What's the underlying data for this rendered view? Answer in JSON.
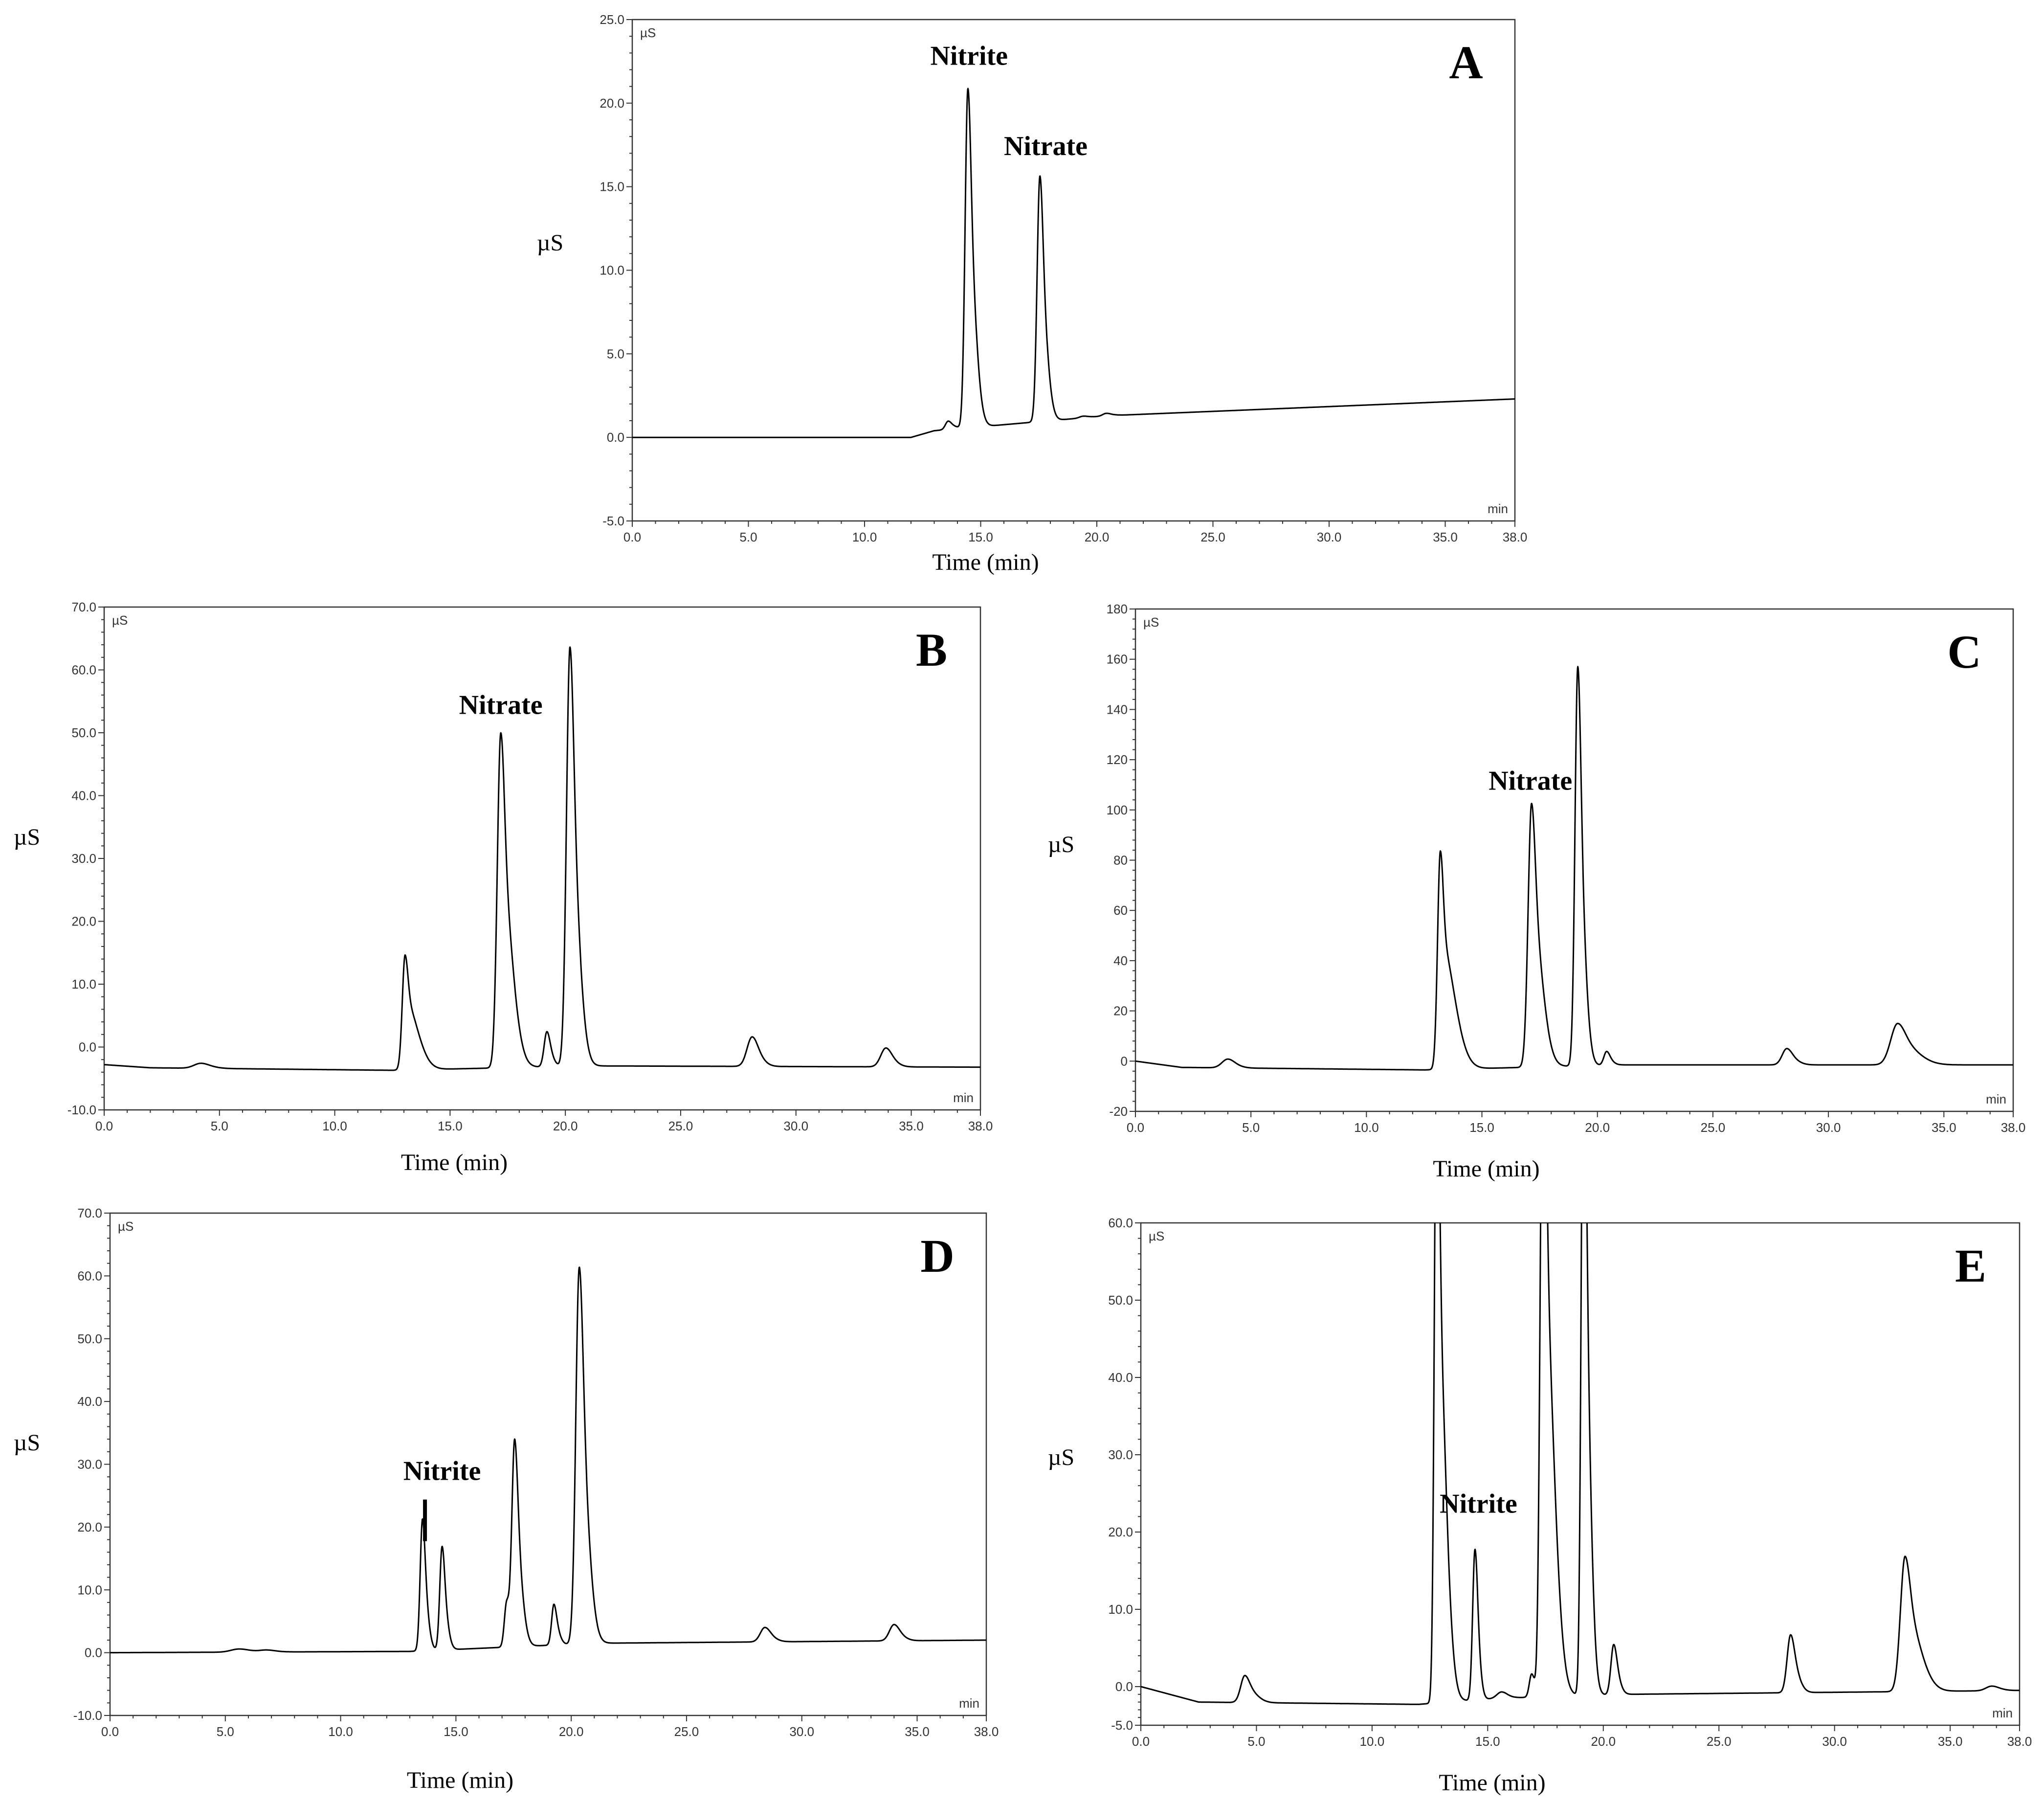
{
  "chart_data": [
    {
      "type": "line",
      "panel": "A",
      "unit_tag": "µS",
      "x_unit_tag": "min",
      "xlabel": "Time (min)",
      "ylabel": "µS",
      "xlim": [
        0,
        38
      ],
      "ylim": [
        -5,
        25
      ],
      "xticks": [
        "0.0",
        "5.0",
        "10.0",
        "15.0",
        "20.0",
        "25.0",
        "30.0",
        "35.0",
        "38.0"
      ],
      "yticks": [
        "-5.0",
        "0.0",
        "5.0",
        "10.0",
        "15.0",
        "20.0",
        "25.0"
      ],
      "baseline": [
        [
          0,
          0
        ],
        [
          12.0,
          0
        ],
        [
          13.0,
          0.4
        ],
        [
          20.5,
          1.3
        ],
        [
          38,
          2.3
        ]
      ],
      "peaks": [
        {
          "t": 13.6,
          "h": 0.5,
          "w": 0.12,
          "tail": 0.3
        },
        {
          "t": 14.45,
          "h": 20.3,
          "w": 0.12,
          "tail": 0.35
        },
        {
          "t": 17.55,
          "h": 14.7,
          "w": 0.12,
          "tail": 0.3
        },
        {
          "t": 19.4,
          "h": 0.1,
          "w": 0.15,
          "tail": 0.3
        },
        {
          "t": 20.4,
          "h": 0.15,
          "w": 0.15,
          "tail": 0.3
        }
      ],
      "annotations": [
        {
          "text": "Nitrite",
          "x": 14.5,
          "y": 22.3,
          "marker": false
        },
        {
          "text": "Nitrate",
          "x": 17.8,
          "y": 16.9,
          "marker": false
        }
      ]
    },
    {
      "type": "line",
      "panel": "B",
      "unit_tag": "µS",
      "x_unit_tag": "min",
      "xlabel": "Time (min)",
      "ylabel": "µS",
      "xlim": [
        0,
        38
      ],
      "ylim": [
        -10,
        70
      ],
      "xticks": [
        "0.0",
        "5.0",
        "10.0",
        "15.0",
        "20.0",
        "25.0",
        "30.0",
        "35.0",
        "38.0"
      ],
      "yticks": [
        "-10.0",
        "0.0",
        "10.0",
        "20.0",
        "30.0",
        "40.0",
        "50.0",
        "60.0",
        "70.0"
      ],
      "baseline": [
        [
          0,
          -2.8
        ],
        [
          2.0,
          -3.3
        ],
        [
          12.5,
          -3.7
        ],
        [
          21.0,
          -3.0
        ],
        [
          38,
          -3.2
        ]
      ],
      "peaks": [
        {
          "t": 4.2,
          "h": 0.8,
          "w": 0.3,
          "tail": 0.4
        },
        {
          "t": 13.05,
          "h": 18.3,
          "w": 0.12,
          "tail": 0.8
        },
        {
          "t": 17.2,
          "h": 53.3,
          "w": 0.15,
          "tail": 0.6
        },
        {
          "t": 19.2,
          "h": 5.6,
          "w": 0.12,
          "tail": 0.2
        },
        {
          "t": 20.2,
          "h": 66.7,
          "w": 0.15,
          "tail": 0.4
        },
        {
          "t": 28.1,
          "h": 4.7,
          "w": 0.22,
          "tail": 0.3
        },
        {
          "t": 33.9,
          "h": 3.0,
          "w": 0.22,
          "tail": 0.3
        }
      ],
      "annotations": [
        {
          "text": "Nitrate",
          "x": 17.2,
          "y": 53.0,
          "marker": false
        }
      ]
    },
    {
      "type": "line",
      "panel": "C",
      "unit_tag": "µS",
      "x_unit_tag": "min",
      "xlabel": "Time (min)",
      "ylabel": "µS",
      "xlim": [
        0,
        38
      ],
      "ylim": [
        -20,
        180
      ],
      "xticks": [
        "0.0",
        "5.0",
        "10.0",
        "15.0",
        "20.0",
        "25.0",
        "30.0",
        "35.0",
        "38.0"
      ],
      "yticks": [
        "-20",
        "0",
        "20",
        "40",
        "60",
        "80",
        "100",
        "120",
        "140",
        "160",
        "180"
      ],
      "baseline": [
        [
          0,
          0
        ],
        [
          2.0,
          -2.5
        ],
        [
          12.5,
          -3.5
        ],
        [
          21.0,
          -1.5
        ],
        [
          38,
          -1.5
        ]
      ],
      "peaks": [
        {
          "t": 4.0,
          "h": 3.5,
          "w": 0.25,
          "tail": 0.3
        },
        {
          "t": 13.2,
          "h": 87.0,
          "w": 0.12,
          "tail": 0.9
        },
        {
          "t": 17.15,
          "h": 105.0,
          "w": 0.15,
          "tail": 0.55
        },
        {
          "t": 19.15,
          "h": 159.0,
          "w": 0.12,
          "tail": 0.3
        },
        {
          "t": 20.4,
          "h": 5.5,
          "w": 0.12,
          "tail": 0.2
        },
        {
          "t": 28.2,
          "h": 6.5,
          "w": 0.2,
          "tail": 0.35
        },
        {
          "t": 33.0,
          "h": 16.5,
          "w": 0.3,
          "tail": 0.9
        }
      ],
      "annotations": [
        {
          "text": "Nitrate",
          "x": 17.1,
          "y": 108.0,
          "marker": false
        }
      ]
    },
    {
      "type": "line",
      "panel": "D",
      "unit_tag": "µS",
      "x_unit_tag": "min",
      "xlabel": "Time (min)",
      "ylabel": "µS",
      "xlim": [
        0,
        38
      ],
      "ylim": [
        -10,
        70
      ],
      "xticks": [
        "0.0",
        "5.0",
        "10.0",
        "15.0",
        "20.0",
        "25.0",
        "30.0",
        "35.0",
        "38.0"
      ],
      "yticks": [
        "-10.0",
        "0.0",
        "10.0",
        "20.0",
        "30.0",
        "40.0",
        "50.0",
        "60.0",
        "70.0"
      ],
      "baseline": [
        [
          0,
          0
        ],
        [
          13.0,
          0.2
        ],
        [
          21.0,
          1.5
        ],
        [
          38,
          2.0
        ]
      ],
      "peaks": [
        {
          "t": 5.6,
          "h": 0.5,
          "w": 0.35,
          "tail": 0.4
        },
        {
          "t": 6.8,
          "h": 0.3,
          "w": 0.3,
          "tail": 0.3
        },
        {
          "t": 13.55,
          "h": 21.0,
          "w": 0.1,
          "tail": 0.2
        },
        {
          "t": 14.4,
          "h": 16.5,
          "w": 0.1,
          "tail": 0.2
        },
        {
          "t": 17.2,
          "h": 7.0,
          "w": 0.1,
          "tail": 0.15
        },
        {
          "t": 17.55,
          "h": 32.5,
          "w": 0.12,
          "tail": 0.3
        },
        {
          "t": 19.25,
          "h": 6.5,
          "w": 0.1,
          "tail": 0.2
        },
        {
          "t": 20.35,
          "h": 60.0,
          "w": 0.15,
          "tail": 0.4
        },
        {
          "t": 28.4,
          "h": 2.3,
          "w": 0.2,
          "tail": 0.3
        },
        {
          "t": 34.0,
          "h": 2.6,
          "w": 0.2,
          "tail": 0.3
        }
      ],
      "annotations": [
        {
          "text": "Nitrite",
          "x": 14.4,
          "y": 27.5,
          "marker": true
        }
      ]
    },
    {
      "type": "line",
      "panel": "E",
      "unit_tag": "µS",
      "x_unit_tag": "min",
      "xlabel": "Time (min)",
      "ylabel": "µS",
      "xlim": [
        0,
        38
      ],
      "ylim": [
        -5,
        60
      ],
      "xticks": [
        "0.0",
        "5.0",
        "10.0",
        "15.0",
        "20.0",
        "25.0",
        "30.0",
        "35.0",
        "38.0"
      ],
      "yticks": [
        "-5.0",
        "0.0",
        "10.0",
        "20.0",
        "30.0",
        "40.0",
        "50.0",
        "60.0"
      ],
      "baseline": [
        [
          0,
          0
        ],
        [
          2.5,
          -2.0
        ],
        [
          12.0,
          -2.3
        ],
        [
          15.5,
          -1.5
        ],
        [
          21.0,
          -1.0
        ],
        [
          38,
          -0.5
        ]
      ],
      "peaks": [
        {
          "t": 4.5,
          "h": 3.5,
          "w": 0.18,
          "tail": 0.5
        },
        {
          "t": 12.8,
          "h": 90.0,
          "w": 0.1,
          "tail": 0.5
        },
        {
          "t": 14.45,
          "h": 19.5,
          "w": 0.1,
          "tail": 0.15
        },
        {
          "t": 15.6,
          "h": 0.8,
          "w": 0.2,
          "tail": 0.2
        },
        {
          "t": 16.9,
          "h": 3.0,
          "w": 0.1,
          "tail": 0.1
        },
        {
          "t": 17.4,
          "h": 95.0,
          "w": 0.12,
          "tail": 0.6
        },
        {
          "t": 19.15,
          "h": 95.0,
          "w": 0.1,
          "tail": 0.3
        },
        {
          "t": 20.45,
          "h": 6.5,
          "w": 0.12,
          "tail": 0.2
        },
        {
          "t": 28.1,
          "h": 7.5,
          "w": 0.15,
          "tail": 0.3
        },
        {
          "t": 33.05,
          "h": 17.5,
          "w": 0.2,
          "tail": 0.8
        },
        {
          "t": 36.8,
          "h": 0.6,
          "w": 0.25,
          "tail": 0.3
        }
      ],
      "annotations": [
        {
          "text": "Nitrite",
          "x": 14.6,
          "y": 22.5,
          "marker": false
        }
      ]
    }
  ]
}
